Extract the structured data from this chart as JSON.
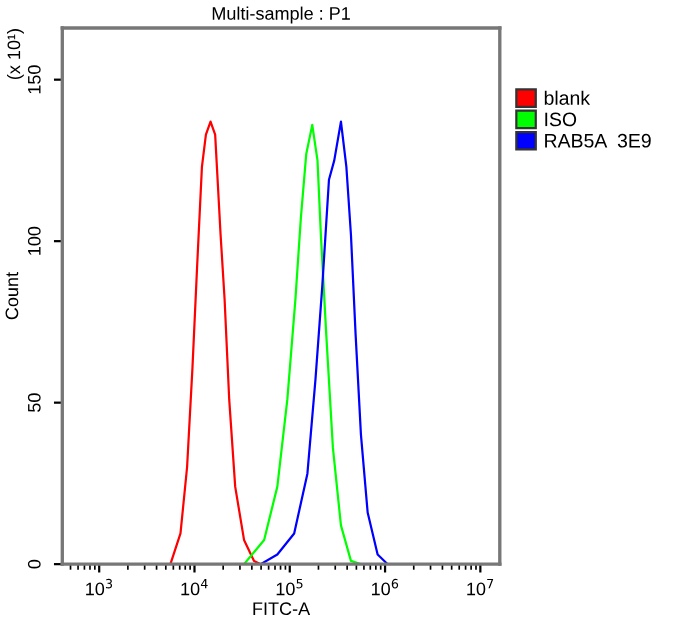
{
  "chart_data": {
    "type": "line",
    "title": "Multi-sample : P1",
    "xlabel": "FITC-A",
    "ylabel": "Count",
    "annotations": [
      "(x 10¹)"
    ],
    "log": "x",
    "xlim": [
      410,
      16000000
    ],
    "xticks": [
      {
        "value": 1000,
        "label": "10$^{3}$"
      },
      {
        "value": 10000,
        "label": "10$^{4}$"
      },
      {
        "value": 100000,
        "label": "10$^{5}$"
      },
      {
        "value": 1000000,
        "label": "10$^{6}$"
      },
      {
        "value": 10000000,
        "label": "10$^{7}$"
      }
    ],
    "ylim": [
      0,
      166
    ],
    "yticks": [
      0,
      50,
      100,
      150
    ],
    "grid": false,
    "legend": "top right",
    "marker": "none",
    "line_style": "solid",
    "series": [
      {
        "name": "blank",
        "color": "#ff0000",
        "x": [
          5590,
          7130,
          8360,
          9530,
          10650,
          11970,
          13180,
          14740,
          16480,
          18790,
          20700,
          23140,
          26740,
          33110,
          42170,
          49510
        ],
        "values": [
          0,
          9.5,
          30,
          61,
          92,
          123,
          133,
          137,
          133,
          102,
          82,
          51,
          24,
          7.5,
          1,
          0
        ]
      },
      {
        "name": "ISO",
        "color": "#00ff00",
        "x": [
          33110,
          53830,
          74040,
          94300,
          114600,
          130600,
          148900,
          172200,
          195400,
          212000,
          241600,
          283600,
          344400,
          438500,
          558500
        ],
        "values": [
          0,
          7.5,
          24,
          51,
          82,
          107,
          127,
          136,
          125,
          102,
          71,
          36,
          12,
          1,
          0
        ]
      },
      {
        "name": "RAB5A  3E9",
        "color": "#0000ff",
        "x": [
          49510,
          74040,
          111200,
          153100,
          185800,
          219300,
          257800,
          293100,
          344400,
          392600,
          438500,
          491000,
          558500,
          656600,
          835600,
          1064000
        ],
        "values": [
          0,
          3,
          9.5,
          28,
          57,
          86,
          119,
          125,
          137,
          123,
          102,
          71,
          40,
          16,
          3,
          0
        ]
      }
    ]
  }
}
